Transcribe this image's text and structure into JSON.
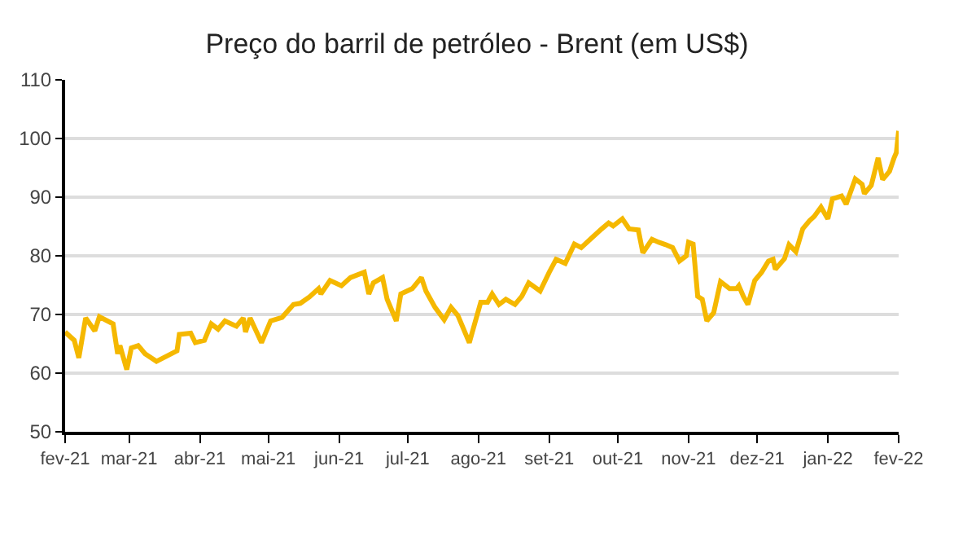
{
  "chart_data": {
    "type": "line",
    "title": "Preço do barril de petróleo - Brent (em US$)",
    "x": [
      "2021-02-01",
      "2021-02-05",
      "2021-02-07",
      "2021-02-10",
      "2021-02-14",
      "2021-02-16",
      "2021-02-22",
      "2021-02-24",
      "2021-02-25",
      "2021-02-28",
      "2021-03-02",
      "2021-03-05",
      "2021-03-08",
      "2021-03-13",
      "2021-03-22",
      "2021-03-23",
      "2021-03-28",
      "2021-03-30",
      "2021-04-03",
      "2021-04-06",
      "2021-04-09",
      "2021-04-12",
      "2021-04-17",
      "2021-04-20",
      "2021-04-21",
      "2021-04-23",
      "2021-04-28",
      "2021-05-02",
      "2021-05-07",
      "2021-05-12",
      "2021-05-15",
      "2021-05-19",
      "2021-05-23",
      "2021-05-24",
      "2021-05-28",
      "2021-06-02",
      "2021-06-06",
      "2021-06-12",
      "2021-06-14",
      "2021-06-16",
      "2021-06-20",
      "2021-06-22",
      "2021-06-26",
      "2021-06-28",
      "2021-07-03",
      "2021-07-07",
      "2021-07-09",
      "2021-07-13",
      "2021-07-17",
      "2021-07-20",
      "2021-07-23",
      "2021-07-28",
      "2021-08-02",
      "2021-08-05",
      "2021-08-07",
      "2021-08-10",
      "2021-08-13",
      "2021-08-17",
      "2021-08-20",
      "2021-08-23",
      "2021-08-28",
      "2021-09-01",
      "2021-09-04",
      "2021-09-08",
      "2021-09-12",
      "2021-09-15",
      "2021-09-20",
      "2021-09-24",
      "2021-09-27",
      "2021-09-29",
      "2021-10-03",
      "2021-10-06",
      "2021-10-10",
      "2021-10-12",
      "2021-10-16",
      "2021-10-19",
      "2021-10-22",
      "2021-10-25",
      "2021-10-28",
      "2021-10-31",
      "2021-11-01",
      "2021-11-03",
      "2021-11-05",
      "2021-11-07",
      "2021-11-09",
      "2021-11-12",
      "2021-11-15",
      "2021-11-19",
      "2021-11-22",
      "2021-11-23",
      "2021-11-25",
      "2021-11-27",
      "2021-11-30",
      "2021-12-03",
      "2021-12-06",
      "2021-12-08",
      "2021-12-09",
      "2021-12-13",
      "2021-12-15",
      "2021-12-18",
      "2021-12-21",
      "2021-12-24",
      "2021-12-26",
      "2021-12-29",
      "2022-01-01",
      "2022-01-03",
      "2022-01-07",
      "2022-01-09",
      "2022-01-13",
      "2022-01-16",
      "2022-01-17",
      "2022-01-20",
      "2022-01-23",
      "2022-01-25",
      "2022-01-28",
      "2022-01-30",
      "2022-01-31",
      "2022-02-01"
    ],
    "series": [
      {
        "color": "#f5b800",
        "values": [
          67,
          65.6,
          62.6,
          69.4,
          67.2,
          69.6,
          68.4,
          63.3,
          64.7,
          60.6,
          64.3,
          64.7,
          63.3,
          62,
          63.8,
          66.6,
          66.8,
          65.2,
          65.6,
          68.4,
          67.5,
          68.9,
          68,
          69.4,
          67,
          69.4,
          65.2,
          68.9,
          69.5,
          71.7,
          71.9,
          73,
          74.4,
          73.5,
          75.8,
          74.9,
          76.3,
          77.2,
          73.5,
          75.4,
          76.3,
          72.6,
          68.9,
          73.5,
          74.4,
          76.3,
          74,
          71.2,
          69.1,
          71.2,
          69.8,
          65.2,
          72.1,
          72.1,
          73.5,
          71.7,
          72.6,
          71.7,
          73.1,
          75.4,
          74,
          77.2,
          79.4,
          78.7,
          82,
          81.4,
          83.2,
          84.6,
          85.6,
          85.1,
          86.3,
          84.6,
          84.4,
          80.5,
          82.8,
          82.3,
          81.9,
          81.4,
          79.1,
          80,
          82.3,
          82,
          73.1,
          72.6,
          68.9,
          70.3,
          75.6,
          74.4,
          74.4,
          74.9,
          73.1,
          71.7,
          75.8,
          77.2,
          79.1,
          79.4,
          77.7,
          79.5,
          81.9,
          80.7,
          84.6,
          86,
          86.7,
          88.3,
          86.3,
          89.7,
          90.2,
          88.8,
          93.1,
          92.2,
          90.6,
          92,
          96.7,
          93,
          94.4,
          96.7,
          97.6,
          101.3
        ]
      }
    ],
    "xlim": [
      "2021-02-01",
      "2022-02-01"
    ],
    "xticks": [
      {
        "value": "2021-02-01",
        "label": "fev-21"
      },
      {
        "value": "2021-03-01",
        "label": "mar-21"
      },
      {
        "value": "2021-04-01",
        "label": "abr-21"
      },
      {
        "value": "2021-05-01",
        "label": "mai-21"
      },
      {
        "value": "2021-06-01",
        "label": "jun-21"
      },
      {
        "value": "2021-07-01",
        "label": "jul-21"
      },
      {
        "value": "2021-08-01",
        "label": "ago-21"
      },
      {
        "value": "2021-09-01",
        "label": "set-21"
      },
      {
        "value": "2021-10-01",
        "label": "out-21"
      },
      {
        "value": "2021-11-01",
        "label": "nov-21"
      },
      {
        "value": "2021-12-01",
        "label": "dez-21"
      },
      {
        "value": "2022-01-01",
        "label": "jan-22"
      },
      {
        "value": "2022-02-01",
        "label": "fev-22"
      }
    ],
    "ylim": [
      50,
      110
    ],
    "yticks": [
      50,
      60,
      70,
      80,
      90,
      100,
      110
    ],
    "grid": "y",
    "marker": "none",
    "line_style": "solid"
  }
}
